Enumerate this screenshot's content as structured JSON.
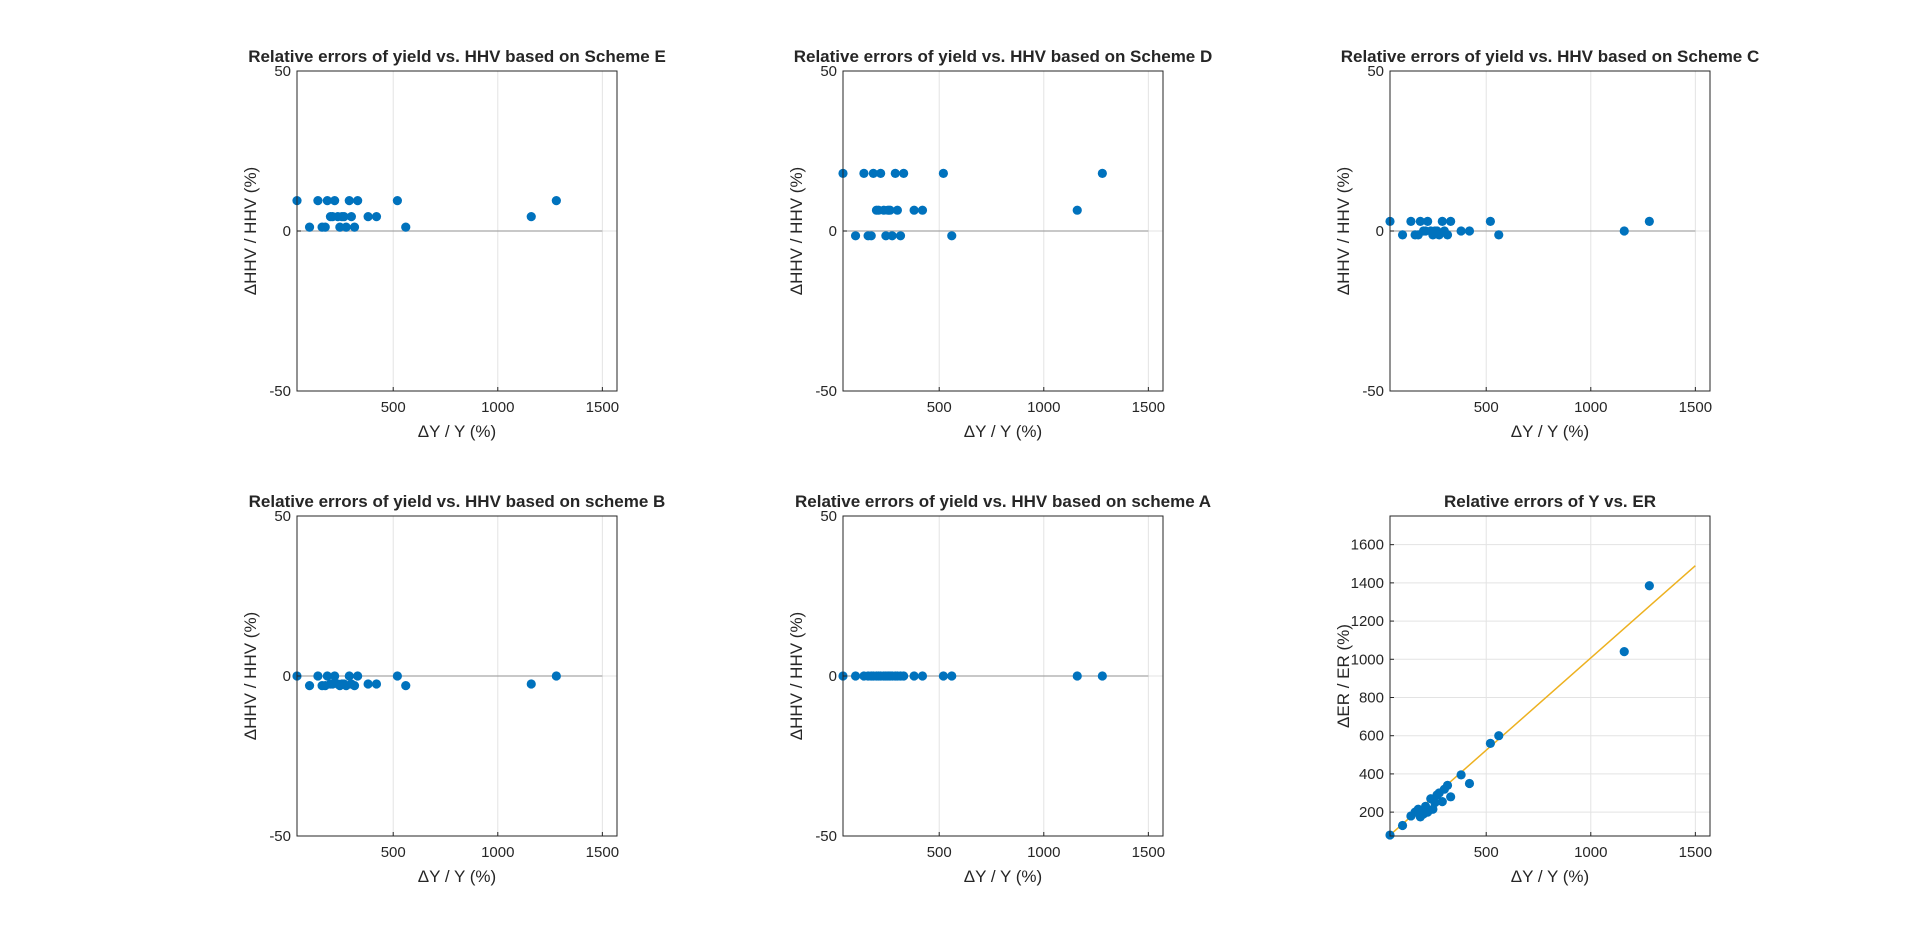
{
  "figure": {
    "background": "#ffffff"
  },
  "chart_data": [
    {
      "type": "scatter",
      "title": "Relative errors of yield vs. HHV based on Scheme E",
      "xlabel": "ΔY / Y (%)",
      "ylabel": "ΔHHV / HHV  (%)",
      "xlim": [
        40,
        1570
      ],
      "ylim": [
        -50,
        50
      ],
      "xticks": [
        500,
        1000,
        1500
      ],
      "yticks": [
        -50,
        0,
        50
      ],
      "grid": true,
      "zero_line": {
        "x": [
          40,
          1500
        ],
        "y": 0
      },
      "marker_color": "#0072BD",
      "series": [
        {
          "x": [
            40,
            100,
            140,
            160,
            175,
            185,
            200,
            210,
            220,
            235,
            245,
            255,
            265,
            275,
            290,
            300,
            315,
            330,
            380,
            420,
            520,
            560,
            1160,
            1280
          ],
          "y": [
            9.5,
            1.2,
            9.5,
            1.2,
            1.2,
            9.5,
            4.5,
            4.5,
            9.5,
            4.5,
            1.2,
            4.5,
            4.5,
            1.2,
            9.5,
            4.5,
            1.2,
            9.5,
            4.5,
            4.5,
            9.5,
            1.2,
            4.5,
            9.5
          ]
        }
      ]
    },
    {
      "type": "scatter",
      "title": "Relative errors of yield vs. HHV based on Scheme D",
      "xlabel": "ΔY / Y (%)",
      "ylabel": "ΔHHV / HHV  (%)",
      "xlim": [
        40,
        1570
      ],
      "ylim": [
        -50,
        50
      ],
      "xticks": [
        500,
        1000,
        1500
      ],
      "yticks": [
        -50,
        0,
        50
      ],
      "grid": true,
      "zero_line": {
        "x": [
          40,
          1500
        ],
        "y": 0
      },
      "marker_color": "#0072BD",
      "series": [
        {
          "x": [
            40,
            100,
            140,
            160,
            175,
            185,
            200,
            210,
            220,
            235,
            245,
            255,
            265,
            275,
            290,
            300,
            315,
            330,
            380,
            420,
            520,
            560,
            1160,
            1280
          ],
          "y": [
            18,
            -1.5,
            18,
            -1.5,
            -1.5,
            18,
            6.5,
            6.5,
            18,
            6.5,
            -1.5,
            6.5,
            6.5,
            -1.5,
            18,
            6.5,
            -1.5,
            18,
            6.5,
            6.5,
            18,
            -1.5,
            6.5,
            18
          ]
        }
      ]
    },
    {
      "type": "scatter",
      "title": "Relative errors of yield vs. HHV based on Scheme C",
      "xlabel": "ΔY / Y (%)",
      "ylabel": "ΔHHV / HHV  (%)",
      "xlim": [
        40,
        1570
      ],
      "ylim": [
        -50,
        50
      ],
      "xticks": [
        500,
        1000,
        1500
      ],
      "yticks": [
        -50,
        0,
        50
      ],
      "grid": true,
      "zero_line": {
        "x": [
          40,
          1500
        ],
        "y": 0
      },
      "marker_color": "#0072BD",
      "series": [
        {
          "x": [
            40,
            100,
            140,
            160,
            175,
            185,
            200,
            210,
            220,
            235,
            245,
            255,
            265,
            275,
            290,
            300,
            315,
            330,
            380,
            420,
            520,
            560,
            1160,
            1280
          ],
          "y": [
            3,
            -1.2,
            3,
            -1.2,
            -1.2,
            3,
            0,
            0,
            3,
            0,
            -1.2,
            0,
            0,
            -1.2,
            3,
            0,
            -1.2,
            3,
            0,
            0,
            3,
            -1.2,
            0,
            3
          ]
        }
      ]
    },
    {
      "type": "scatter",
      "title": "Relative errors of yield vs. HHV based on scheme B",
      "xlabel": "ΔY / Y (%)",
      "ylabel": "ΔHHV / HHV  (%)",
      "xlim": [
        40,
        1570
      ],
      "ylim": [
        -50,
        50
      ],
      "xticks": [
        500,
        1000,
        1500
      ],
      "yticks": [
        -50,
        0,
        50
      ],
      "grid": true,
      "zero_line": {
        "x": [
          40,
          1500
        ],
        "y": 0
      },
      "marker_color": "#0072BD",
      "series": [
        {
          "x": [
            40,
            100,
            140,
            160,
            175,
            185,
            200,
            210,
            220,
            235,
            245,
            255,
            265,
            275,
            290,
            300,
            315,
            330,
            380,
            420,
            520,
            560,
            1160,
            1280
          ],
          "y": [
            0,
            -3,
            0,
            -3,
            -3,
            0,
            -2.5,
            -2.5,
            0,
            -2.5,
            -3,
            -2.5,
            -2.5,
            -3,
            0,
            -2.5,
            -3,
            0,
            -2.5,
            -2.5,
            0,
            -3,
            -2.5,
            0
          ]
        }
      ]
    },
    {
      "type": "scatter",
      "title": "Relative errors of yield vs. HHV based on scheme A",
      "xlabel": "ΔY / Y (%)",
      "ylabel": "ΔHHV / HHV  (%)",
      "xlim": [
        40,
        1570
      ],
      "ylim": [
        -50,
        50
      ],
      "xticks": [
        500,
        1000,
        1500
      ],
      "yticks": [
        -50,
        0,
        50
      ],
      "grid": true,
      "zero_line": {
        "x": [
          40,
          1500
        ],
        "y": 0
      },
      "marker_color": "#0072BD",
      "series": [
        {
          "x": [
            40,
            100,
            140,
            160,
            175,
            185,
            200,
            210,
            220,
            235,
            245,
            255,
            265,
            275,
            290,
            300,
            315,
            330,
            380,
            420,
            520,
            560,
            1160,
            1280
          ],
          "y": [
            0,
            0,
            0,
            0,
            0,
            0,
            0,
            0,
            0,
            0,
            0,
            0,
            0,
            0,
            0,
            0,
            0,
            0,
            0,
            0,
            0,
            0,
            0,
            0
          ]
        }
      ]
    },
    {
      "type": "scatter",
      "title": "Relative errors of Y vs. ER",
      "xlabel": "ΔY / Y (%)",
      "ylabel": "ΔER / ER (%)",
      "xlim": [
        40,
        1570
      ],
      "ylim": [
        75,
        1750
      ],
      "xticks": [
        500,
        1000,
        1500
      ],
      "yticks": [
        200,
        400,
        600,
        800,
        1000,
        1200,
        1400,
        1600
      ],
      "grid": true,
      "fit_line": {
        "x": [
          40,
          1500
        ],
        "y": [
          80,
          1490
        ],
        "color": "#EDB120"
      },
      "marker_color": "#0072BD",
      "series": [
        {
          "x": [
            40,
            100,
            140,
            160,
            175,
            185,
            200,
            210,
            220,
            235,
            245,
            255,
            265,
            275,
            290,
            300,
            315,
            330,
            380,
            420,
            520,
            560,
            1160,
            1280
          ],
          "y": [
            80,
            130,
            180,
            200,
            215,
            175,
            190,
            230,
            200,
            270,
            215,
            250,
            290,
            300,
            255,
            320,
            340,
            280,
            395,
            350,
            560,
            600,
            1040,
            1385
          ]
        }
      ]
    }
  ]
}
